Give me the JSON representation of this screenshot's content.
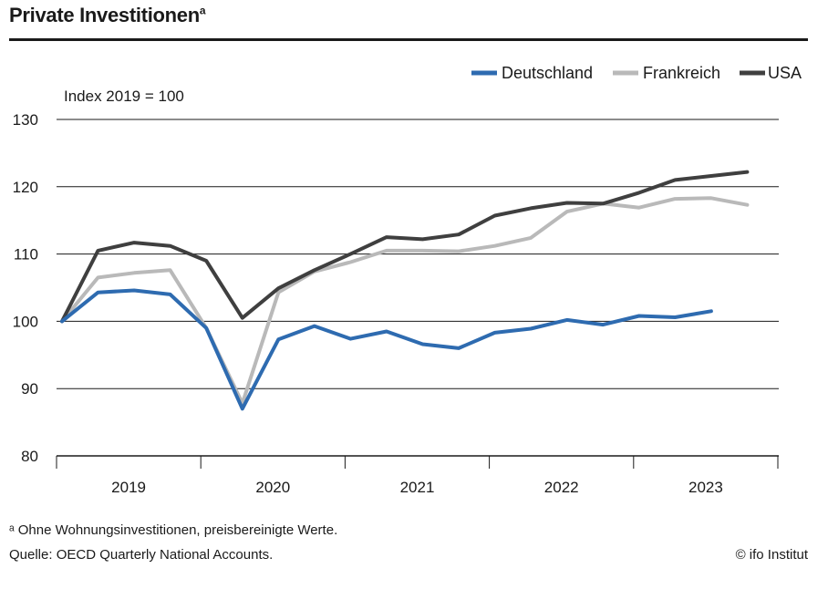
{
  "header": {
    "title": "Private Investitionen",
    "title_marker": "a"
  },
  "footer": {
    "footnote": "ᵃ Ohne Wohnungsinvestitionen, preisbereinigte Werte.",
    "source": "Quelle: OECD Quarterly National Accounts.",
    "copyright": "© ifo Institut"
  },
  "chart_data": {
    "type": "line",
    "title": "Private Investitionen",
    "ylabel": "Index 2019 = 100",
    "xlabel": "",
    "ylim": [
      80,
      130
    ],
    "yticks": [
      80,
      90,
      100,
      110,
      120,
      130
    ],
    "grid": true,
    "legend_position": "top-right",
    "x_axis_years": [
      "2019",
      "2020",
      "2021",
      "2022",
      "2023"
    ],
    "x": [
      "2019Q1",
      "2019Q2",
      "2019Q3",
      "2019Q4",
      "2020Q1",
      "2020Q2",
      "2020Q3",
      "2020Q4",
      "2021Q1",
      "2021Q2",
      "2021Q3",
      "2021Q4",
      "2022Q1",
      "2022Q2",
      "2022Q3",
      "2022Q4",
      "2023Q1",
      "2023Q2",
      "2023Q3",
      "2023Q4"
    ],
    "series": [
      {
        "name": "Deutschland",
        "color": "#2e6bb0",
        "values": [
          100.0,
          104.3,
          104.6,
          104.0,
          99.0,
          87.0,
          97.3,
          99.3,
          97.4,
          98.5,
          96.6,
          96.0,
          98.3,
          98.9,
          100.2,
          99.5,
          100.8,
          100.6,
          101.5,
          null
        ]
      },
      {
        "name": "Frankreich",
        "color": "#b9b9b9",
        "values": [
          100.0,
          106.5,
          107.2,
          107.6,
          99.0,
          87.8,
          104.3,
          107.4,
          108.8,
          110.5,
          110.5,
          110.4,
          111.2,
          112.4,
          116.3,
          117.5,
          116.9,
          118.2,
          118.3,
          117.3
        ]
      },
      {
        "name": "USA",
        "color": "#3f3f3f",
        "values": [
          100.0,
          110.5,
          111.7,
          111.2,
          109.0,
          100.5,
          104.9,
          107.6,
          110.0,
          112.5,
          112.2,
          112.9,
          115.7,
          116.8,
          117.6,
          117.5,
          119.1,
          121.0,
          121.6,
          122.2
        ]
      }
    ]
  }
}
